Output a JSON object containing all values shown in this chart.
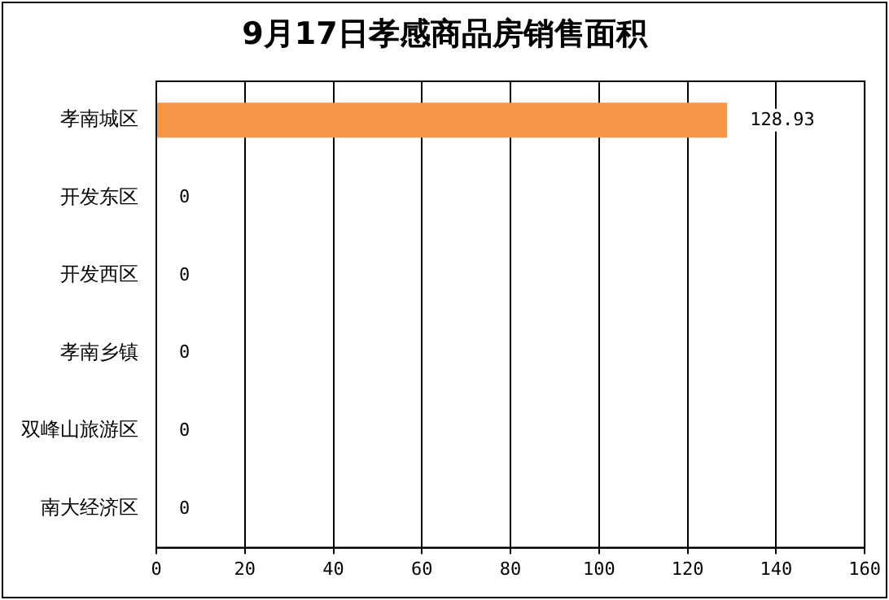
{
  "chart_data": {
    "type": "bar",
    "orientation": "horizontal",
    "title": "9月17日孝感商品房销售面积",
    "categories": [
      "孝南城区",
      "开发东区",
      "开发西区",
      "孝南乡镇",
      "双峰山旅游区",
      "南大经济区"
    ],
    "values": [
      128.93,
      0,
      0,
      0,
      0,
      0
    ],
    "color": "#f79646",
    "xlim": [
      0,
      160
    ],
    "xticks": [
      0,
      20,
      40,
      60,
      80,
      100,
      120,
      140,
      160
    ],
    "grid": "x",
    "data_labels": true
  }
}
